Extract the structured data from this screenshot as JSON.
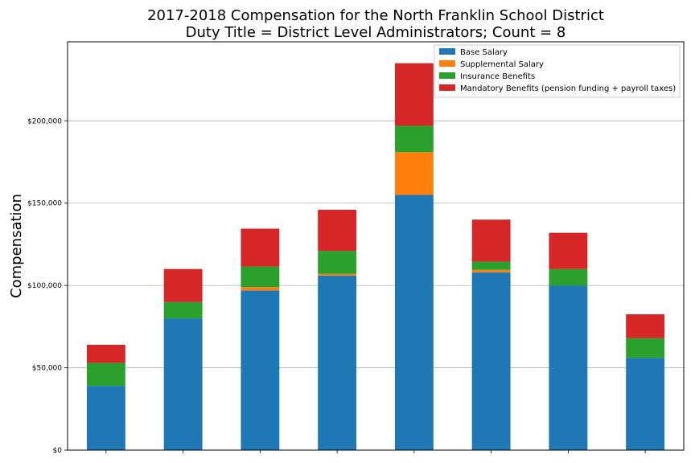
{
  "chart_data": {
    "type": "bar",
    "stacked": true,
    "title_lines": [
      "2017-2018 Compensation for the North Franklin School District",
      "Duty Title = District Level Administrators; Count = 8"
    ],
    "xlabel": "",
    "ylabel": "Compensation",
    "ylim": [
      0,
      248000
    ],
    "yticks": [
      0,
      50000,
      100000,
      150000,
      200000
    ],
    "ytick_labels": [
      "$0",
      "$50,000",
      "$100,000",
      "$150,000",
      "$200,000"
    ],
    "grid": "horizontal",
    "legend_position": "top-right",
    "categories": [
      "",
      "",
      "",
      "",
      "",
      "",
      "",
      ""
    ],
    "series": [
      {
        "name": "Base Salary",
        "color": "#1f77b4",
        "values": [
          39000,
          80000,
          97000,
          106000,
          155000,
          108000,
          100000,
          56000
        ]
      },
      {
        "name": "Supplemental Salary",
        "color": "#ff7f0e",
        "values": [
          0,
          0,
          2000,
          1000,
          26000,
          1500,
          0,
          0
        ]
      },
      {
        "name": "Insurance Benefits",
        "color": "#2ca02c",
        "values": [
          14000,
          10000,
          12500,
          14000,
          16000,
          5000,
          10000,
          12000
        ]
      },
      {
        "name": "Mandatory Benefits (pension funding + payroll taxes)",
        "color": "#d62728",
        "values": [
          11000,
          20000,
          23000,
          25000,
          38000,
          25500,
          22000,
          14500
        ]
      }
    ]
  }
}
